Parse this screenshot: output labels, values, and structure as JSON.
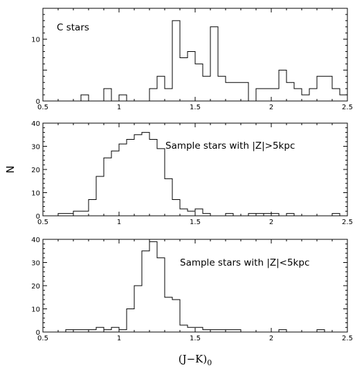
{
  "figure": {
    "xlabel": "(J−K)",
    "xlabel_sub": "0",
    "ylabel": "N"
  },
  "chart_data": [
    {
      "type": "bar",
      "annotation": "C stars",
      "bin_width": 0.05,
      "xlim": [
        0.5,
        2.5
      ],
      "ylim": [
        0,
        15
      ],
      "xticks": [
        "0.5",
        "1",
        "1.5",
        "2",
        "2.5"
      ],
      "yticks": [
        0,
        10
      ],
      "bins": [
        [
          1.2,
          2
        ],
        [
          1.25,
          4
        ],
        [
          1.3,
          2
        ],
        [
          1.35,
          13
        ],
        [
          1.4,
          7
        ],
        [
          1.45,
          8
        ],
        [
          1.5,
          6
        ],
        [
          1.55,
          4
        ],
        [
          1.6,
          12
        ],
        [
          1.65,
          4
        ],
        [
          1.7,
          3
        ],
        [
          1.75,
          3
        ],
        [
          1.8,
          3
        ],
        [
          1.85,
          0
        ],
        [
          1.9,
          2
        ],
        [
          1.95,
          2
        ],
        [
          2.0,
          2
        ],
        [
          2.05,
          5
        ],
        [
          2.1,
          3
        ],
        [
          2.15,
          2
        ],
        [
          2.2,
          1
        ],
        [
          2.25,
          2
        ],
        [
          2.3,
          4
        ],
        [
          2.35,
          4
        ],
        [
          2.4,
          2
        ],
        [
          2.45,
          1
        ]
      ],
      "isolated_bins": [
        [
          0.75,
          1
        ],
        [
          0.9,
          2
        ],
        [
          1.0,
          1
        ]
      ]
    },
    {
      "type": "bar",
      "annotation": "Sample stars with |Z|>5kpc",
      "bin_width": 0.05,
      "xlim": [
        0.5,
        2.5
      ],
      "ylim": [
        0,
        40
      ],
      "xticks": [
        "0.5",
        "1",
        "1.5",
        "2",
        "2.5"
      ],
      "yticks": [
        0,
        10,
        20,
        30,
        40
      ],
      "bins": [
        [
          0.6,
          1
        ],
        [
          0.65,
          1
        ],
        [
          0.7,
          2
        ],
        [
          0.75,
          2
        ],
        [
          0.8,
          7
        ],
        [
          0.85,
          17
        ],
        [
          0.9,
          25
        ],
        [
          0.95,
          28
        ],
        [
          1.0,
          31
        ],
        [
          1.05,
          33
        ],
        [
          1.1,
          35
        ],
        [
          1.15,
          36
        ],
        [
          1.2,
          33
        ],
        [
          1.25,
          29
        ],
        [
          1.3,
          16
        ],
        [
          1.35,
          7
        ],
        [
          1.4,
          3
        ],
        [
          1.45,
          2
        ],
        [
          1.5,
          3
        ],
        [
          1.55,
          1
        ]
      ],
      "isolated_bins": [
        [
          1.7,
          1
        ],
        [
          1.85,
          1
        ],
        [
          1.9,
          1
        ],
        [
          1.95,
          1
        ],
        [
          2.0,
          1
        ],
        [
          2.1,
          1
        ],
        [
          2.4,
          1
        ]
      ]
    },
    {
      "type": "bar",
      "annotation": "Sample stars with |Z|<5kpc",
      "bin_width": 0.05,
      "xlim": [
        0.5,
        2.5
      ],
      "ylim": [
        0,
        40
      ],
      "xticks": [
        "0.5",
        "1",
        "1.5",
        "2",
        "2.5"
      ],
      "yticks": [
        0,
        10,
        20,
        30,
        40
      ],
      "bins": [
        [
          0.65,
          1
        ],
        [
          0.7,
          1
        ],
        [
          0.75,
          1
        ],
        [
          0.8,
          1
        ],
        [
          0.85,
          2
        ],
        [
          0.9,
          1
        ],
        [
          0.95,
          2
        ],
        [
          1.0,
          1
        ],
        [
          1.05,
          10
        ],
        [
          1.1,
          20
        ],
        [
          1.15,
          35
        ],
        [
          1.2,
          39
        ],
        [
          1.25,
          32
        ],
        [
          1.3,
          15
        ],
        [
          1.35,
          14
        ],
        [
          1.4,
          3
        ],
        [
          1.45,
          2
        ],
        [
          1.5,
          2
        ],
        [
          1.55,
          1
        ],
        [
          1.6,
          1
        ],
        [
          1.65,
          1
        ],
        [
          1.7,
          1
        ],
        [
          1.75,
          1
        ]
      ],
      "isolated_bins": [
        [
          2.05,
          1
        ],
        [
          2.3,
          1
        ]
      ]
    }
  ]
}
